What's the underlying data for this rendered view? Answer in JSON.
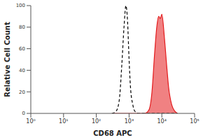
{
  "chart_data": {
    "type": "histogram",
    "x_label": "CD68 APC",
    "y_label": "Relative Cell Count",
    "log": "x",
    "x": [
      300,
      400,
      500,
      600,
      700,
      800,
      900,
      1000,
      1100,
      1300,
      1500,
      2000,
      3000,
      4000,
      5000,
      6000,
      7000,
      8000,
      9000,
      10000,
      12000,
      14000,
      16000,
      20000,
      25000,
      30000
    ],
    "series": [
      {
        "color": "#000000",
        "type": "line",
        "line_style": "dashed",
        "values": [
          0,
          2,
          12,
          45,
          80,
          100,
          85,
          50,
          25,
          8,
          2,
          0,
          0,
          0,
          0,
          0,
          0,
          0,
          0,
          0,
          0,
          0,
          0,
          0,
          0,
          0
        ]
      },
      {
        "color": "#e31a1c",
        "type": "area",
        "line_style": "solid",
        "values": [
          0,
          0,
          0,
          0,
          0,
          0,
          0,
          0,
          0,
          0,
          0,
          0,
          0,
          3,
          20,
          55,
          80,
          90,
          88,
          92,
          70,
          45,
          25,
          8,
          2,
          0
        ]
      }
    ],
    "xlim": [
      1,
      100000
    ],
    "xticks": [
      {
        "value": 1,
        "label": "10⁰"
      },
      {
        "value": 10,
        "label": "10¹"
      },
      {
        "value": 100,
        "label": "10²"
      },
      {
        "value": 1000,
        "label": "10³"
      },
      {
        "value": 10000,
        "label": "10⁴"
      },
      {
        "value": 100000,
        "label": "10⁵"
      }
    ],
    "ylim": [
      0,
      100
    ],
    "yticks": [
      0,
      20,
      40,
      60,
      80,
      100
    ]
  }
}
